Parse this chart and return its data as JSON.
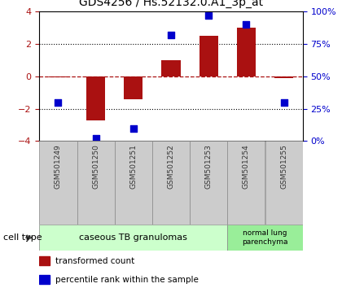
{
  "title": "GDS4256 / Hs.52132.0.A1_3p_at",
  "samples": [
    "GSM501249",
    "GSM501250",
    "GSM501251",
    "GSM501252",
    "GSM501253",
    "GSM501254",
    "GSM501255"
  ],
  "transformed_count": [
    -0.05,
    -2.7,
    -1.4,
    1.0,
    2.5,
    3.0,
    -0.1
  ],
  "percentile_rank": [
    30,
    2,
    10,
    82,
    97,
    90,
    30
  ],
  "ylim_left": [
    -4,
    4
  ],
  "ylim_right": [
    0,
    100
  ],
  "yticks_left": [
    -4,
    -2,
    0,
    2,
    4
  ],
  "yticks_right": [
    0,
    25,
    50,
    75,
    100
  ],
  "ytick_labels_right": [
    "0%",
    "25%",
    "50%",
    "75%",
    "100%"
  ],
  "bar_color": "#aa1111",
  "dot_color": "#0000cc",
  "group1_count": 5,
  "group2_count": 2,
  "group1_label": "caseous TB granulomas",
  "group2_label": "normal lung\nparenchyma",
  "group1_color": "#ccffcc",
  "group2_color": "#99ee99",
  "legend_items": [
    {
      "color": "#aa1111",
      "label": "transformed count"
    },
    {
      "color": "#0000cc",
      "label": "percentile rank within the sample"
    }
  ],
  "cell_type_label": "cell type",
  "background_color": "#ffffff",
  "bar_width": 0.5,
  "dot_size": 35,
  "xtick_box_color": "#cccccc",
  "xtick_box_edge": "#888888"
}
